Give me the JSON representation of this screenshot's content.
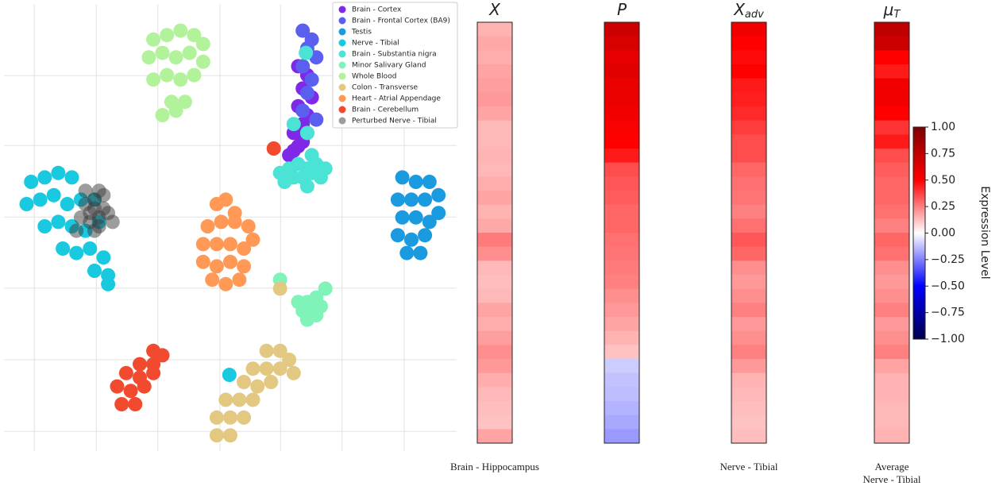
{
  "chart_data": [
    {
      "type": "scatter",
      "xlim": [
        0,
        100
      ],
      "ylim": [
        0,
        100
      ],
      "xticks": [
        6.7,
        20.4,
        34.0,
        47.7,
        61.1,
        74.7,
        88.4
      ],
      "yticks": [
        3.9,
        20.0,
        36.1,
        52.1,
        68.2,
        83.9
      ],
      "grid": true,
      "legend": "upper right",
      "series": [
        {
          "name": "Brain - Cortex",
          "color": "#7f28e8",
          "x": [
            65,
            67,
            66,
            68,
            65,
            67,
            66,
            64,
            66,
            65,
            63,
            64
          ],
          "y": [
            86,
            84,
            81,
            79,
            77,
            75,
            73,
            71,
            69,
            68,
            66,
            67
          ]
        },
        {
          "name": "Brain - Frontal Cortex (BA9)",
          "color": "#5b5ff0",
          "x": [
            66,
            68,
            67,
            69,
            66,
            68,
            67,
            66,
            69,
            67
          ],
          "y": [
            94,
            92,
            90,
            88,
            86,
            83,
            80,
            76,
            74,
            71
          ]
        },
        {
          "name": "Testis",
          "color": "#1a9be0",
          "x": [
            88,
            91,
            94,
            96,
            87,
            90,
            93,
            96,
            88,
            91,
            94,
            87,
            90,
            93,
            89,
            92
          ],
          "y": [
            61,
            60,
            60,
            57,
            56,
            56,
            56,
            53,
            52,
            52,
            51,
            48,
            47,
            48,
            44,
            44
          ]
        },
        {
          "name": "Nerve - Tibial",
          "color": "#18c9e0",
          "x": [
            6,
            9,
            12,
            15,
            5,
            8,
            11,
            14,
            17,
            20,
            9,
            12,
            15,
            18,
            21,
            13,
            16,
            19,
            22,
            23,
            20,
            23,
            49.8
          ],
          "y": [
            60,
            61,
            62,
            61,
            55,
            56,
            57,
            55,
            56,
            56,
            50,
            51,
            50,
            49,
            51,
            45,
            44,
            45,
            43,
            39,
            40,
            37,
            16.6
          ]
        },
        {
          "name": "Brain - Substantia nigra",
          "color": "#4ae3d5",
          "x": [
            61,
            63,
            65,
            67,
            69,
            71,
            62,
            64,
            66,
            68,
            70,
            67,
            68,
            66.7,
            64,
            67
          ],
          "y": [
            62,
            63,
            64,
            63,
            64,
            63,
            60,
            61,
            61,
            62,
            61,
            59,
            66,
            89,
            73,
            71
          ]
        },
        {
          "name": "Minor Salivary Gland",
          "color": "#7ff3b8",
          "x": [
            65,
            67,
            69,
            71,
            66,
            68,
            70,
            67,
            69,
            61
          ],
          "y": [
            33,
            33,
            34,
            36,
            31,
            31,
            32,
            29,
            30,
            38
          ]
        },
        {
          "name": "Whole Blood",
          "color": "#b2f29a",
          "x": [
            33,
            36,
            39,
            42,
            44,
            32,
            35,
            38,
            41,
            44,
            33,
            36,
            39,
            42,
            37,
            40,
            35,
            38
          ],
          "y": [
            92,
            93,
            94,
            93,
            91,
            88,
            89,
            88,
            89,
            87,
            83,
            84,
            83,
            84,
            78,
            78,
            75,
            76
          ]
        },
        {
          "name": "Colon - Transverse",
          "color": "#e3c882",
          "x": [
            58,
            61,
            63,
            55,
            58,
            61,
            64,
            53,
            56,
            59,
            49,
            52,
            55,
            47,
            50,
            53,
            47,
            50,
            61
          ],
          "y": [
            22,
            22,
            20,
            18,
            18,
            18,
            17,
            15,
            14,
            15,
            11,
            11,
            11,
            7,
            7,
            7,
            3,
            3,
            36
          ]
        },
        {
          "name": "Heart - Atrial Appendage",
          "color": "#ff9955",
          "x": [
            47,
            49,
            51,
            45,
            48,
            51,
            54,
            44,
            47,
            50,
            53,
            55,
            44,
            47,
            50,
            53,
            46,
            49,
            52
          ],
          "y": [
            55,
            56,
            53,
            50,
            51,
            51,
            50,
            46,
            46,
            46,
            45,
            47,
            42,
            41,
            42,
            41,
            38,
            37,
            38
          ]
        },
        {
          "name": "Brain - Cerebellum",
          "color": "#f24a2e",
          "x": [
            33,
            35,
            30,
            33,
            27,
            30,
            33,
            25,
            28,
            31,
            26,
            29,
            59.6
          ],
          "y": [
            22,
            21,
            19,
            19,
            17,
            16,
            17,
            14,
            13,
            14,
            10,
            10,
            67.5
          ]
        },
        {
          "name": "Perturbed Nerve - Tibial",
          "color": "rgba(60,60,60,0.5)",
          "x": [
            18,
            19,
            20,
            21,
            22,
            19,
            20,
            21,
            23,
            17,
            24,
            20,
            21,
            18,
            22,
            16
          ],
          "y": [
            55,
            53,
            54,
            52,
            54,
            51,
            56,
            50,
            53,
            52,
            51,
            49,
            58,
            58,
            57,
            49
          ]
        }
      ]
    },
    {
      "type": "heatmap",
      "cmap": "seismic",
      "zlim": [
        -1,
        1
      ],
      "zticks": [
        {
          "value": 1,
          "label": "1.00"
        },
        {
          "value": 0.75,
          "label": "0.75"
        },
        {
          "value": 0.5,
          "label": "0.50"
        },
        {
          "value": 0.25,
          "label": "0.25"
        },
        {
          "value": 0,
          "label": "0.00"
        },
        {
          "value": -0.25,
          "label": "−0.25"
        },
        {
          "value": -0.5,
          "label": "−0.50"
        },
        {
          "value": -0.75,
          "label": "−0.75"
        },
        {
          "value": -1,
          "label": "−1.00"
        }
      ],
      "colorbar_label": "Expression Level",
      "columns": [
        {
          "title": "X",
          "caption": [
            "Brain - Hippocampus"
          ],
          "values": [
            0.15,
            0.17,
            0.16,
            0.18,
            0.19,
            0.2,
            0.18,
            0.14,
            0.14,
            0.15,
            0.14,
            0.16,
            0.18,
            0.15,
            0.17,
            0.26,
            0.22,
            0.14,
            0.13,
            0.14,
            0.18,
            0.16,
            0.19,
            0.22,
            0.2,
            0.16,
            0.14,
            0.13,
            0.12,
            0.18
          ]
        },
        {
          "title": "P",
          "values": [
            0.7,
            0.65,
            0.6,
            0.62,
            0.58,
            0.58,
            0.55,
            0.52,
            0.5,
            0.45,
            0.35,
            0.33,
            0.32,
            0.3,
            0.3,
            0.28,
            0.27,
            0.26,
            0.25,
            0.22,
            0.2,
            0.18,
            0.15,
            0.12,
            -0.1,
            -0.12,
            -0.13,
            -0.15,
            -0.17,
            -0.2
          ]
        },
        {
          "title": "X",
          "subscript": "adv",
          "caption": [
            "Nerve - Tibial"
          ],
          "values": [
            0.55,
            0.5,
            0.48,
            0.5,
            0.45,
            0.44,
            0.42,
            0.38,
            0.35,
            0.35,
            0.3,
            0.28,
            0.27,
            0.25,
            0.28,
            0.33,
            0.3,
            0.22,
            0.2,
            0.22,
            0.25,
            0.2,
            0.22,
            0.25,
            0.2,
            0.15,
            0.14,
            0.13,
            0.12,
            0.13
          ]
        },
        {
          "title": "μ",
          "subscript": "T",
          "caption": [
            "Average",
            "Nerve - Tibial"
          ],
          "values": [
            0.75,
            0.7,
            0.5,
            0.45,
            0.55,
            0.55,
            0.5,
            0.4,
            0.45,
            0.35,
            0.32,
            0.3,
            0.3,
            0.28,
            0.25,
            0.3,
            0.28,
            0.22,
            0.2,
            0.22,
            0.25,
            0.2,
            0.22,
            0.25,
            0.18,
            0.15,
            0.15,
            0.14,
            0.14,
            0.15
          ]
        }
      ]
    }
  ]
}
